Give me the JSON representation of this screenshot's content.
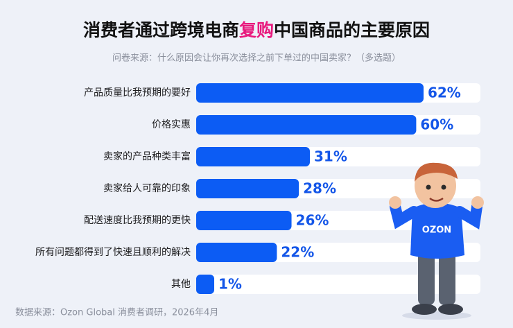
{
  "chart_data": {
    "type": "bar",
    "orientation": "horizontal",
    "title": [
      {
        "text": "消费者通过跨境电商",
        "color": "#111111"
      },
      {
        "text": "复购",
        "color": "#e8197d"
      },
      {
        "text": "中国商品的主要原因",
        "color": "#111111"
      }
    ],
    "subtitle": "问卷来源：什么原因会让你再次选择之前下单过的中国卖家？（多选题）",
    "categories": [
      "产品质量比我预期的要好",
      "价格实惠",
      "卖家的产品种类丰富",
      "卖家给人可靠的印象",
      "配送速度比我预期的更快",
      "所有问题都得到了快速且顺利的解决",
      "其他"
    ],
    "values": [
      62,
      60,
      31,
      28,
      26,
      22,
      1
    ],
    "value_labels": [
      "62%",
      "60%",
      "31%",
      "28%",
      "26%",
      "22%",
      "1%"
    ],
    "color": "#0c5cf4",
    "track_color": "#ffffff",
    "source": "数据来源：Ozon Global 消费者调研，2026年4月",
    "illustration_text": "OZON"
  }
}
